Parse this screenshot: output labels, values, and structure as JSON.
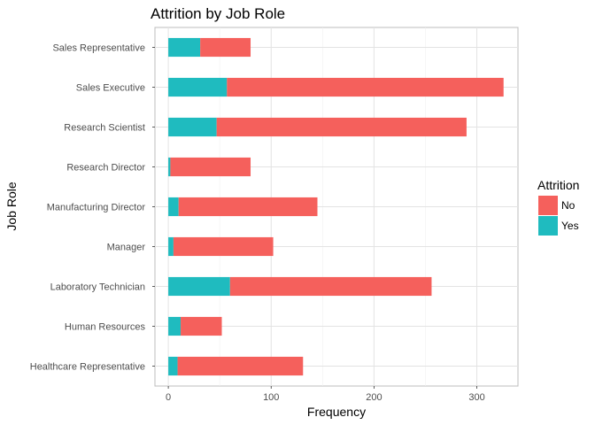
{
  "chart_data": {
    "type": "bar",
    "orientation": "horizontal",
    "stacked": true,
    "title": "Attrition by Job Role",
    "xlabel": "Frequency",
    "ylabel": "Job Role",
    "xlim": [
      -13,
      340
    ],
    "xticks": [
      0,
      100,
      200,
      300
    ],
    "grid": true,
    "legend": {
      "title": "Attrition",
      "position": "right"
    },
    "categories": [
      "Healthcare Representative",
      "Human Resources",
      "Laboratory Technician",
      "Manager",
      "Manufacturing Director",
      "Research Director",
      "Research Scientist",
      "Sales Executive",
      "Sales Representative"
    ],
    "series": [
      {
        "name": "Yes",
        "color": "#1fbbbf",
        "values": [
          9,
          12,
          60,
          5,
          10,
          2,
          47,
          57,
          31
        ]
      },
      {
        "name": "No",
        "color": "#f5605c",
        "values": [
          122,
          40,
          196,
          97,
          135,
          78,
          243,
          269,
          49
        ]
      }
    ]
  }
}
